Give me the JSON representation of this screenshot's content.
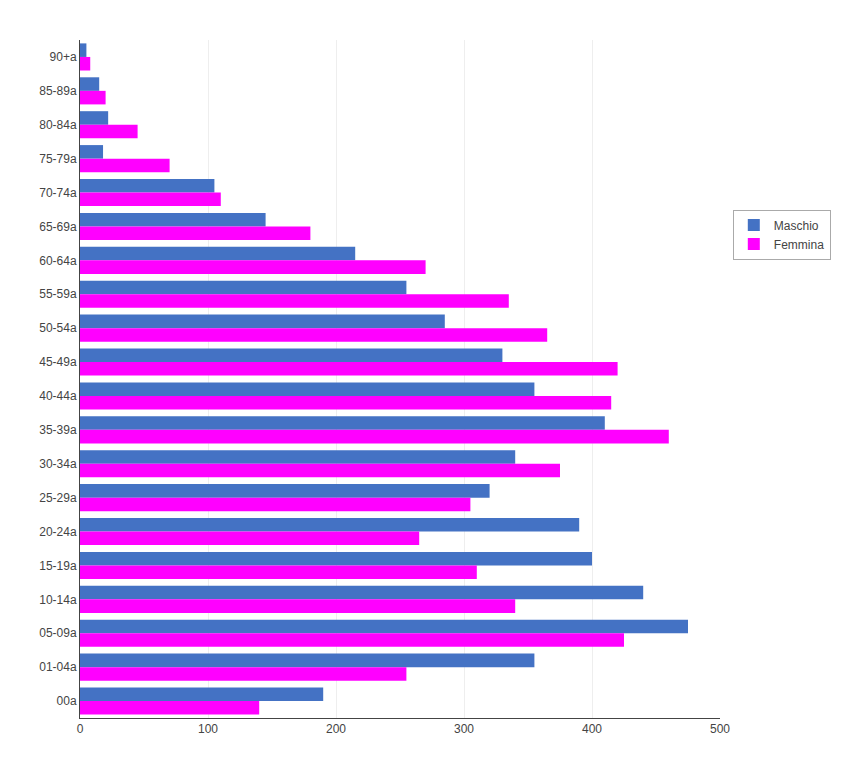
{
  "chart_data": {
    "type": "bar",
    "orientation": "horizontal",
    "categories": [
      "90+a",
      "85-89a",
      "80-84a",
      "75-79a",
      "70-74a",
      "65-69a",
      "60-64a",
      "55-59a",
      "50-54a",
      "45-49a",
      "40-44a",
      "35-39a",
      "30-34a",
      "25-29a",
      "20-24a",
      "15-19a",
      "10-14a",
      "05-09a",
      "01-04a",
      "00a"
    ],
    "series": [
      {
        "name": "Maschio",
        "color": "#4472C4",
        "values": [
          5,
          15,
          22,
          18,
          105,
          145,
          215,
          255,
          285,
          330,
          355,
          410,
          340,
          320,
          390,
          400,
          440,
          475,
          355,
          190
        ]
      },
      {
        "name": "Femmina",
        "color": "#FF00FF",
        "values": [
          8,
          20,
          45,
          70,
          110,
          180,
          270,
          335,
          365,
          420,
          415,
          460,
          375,
          305,
          265,
          310,
          340,
          425,
          255,
          140
        ]
      }
    ],
    "xlim": [
      0,
      500
    ],
    "xticks": [
      0,
      100,
      200,
      300,
      400,
      500
    ],
    "grid": true,
    "legend": "right"
  }
}
